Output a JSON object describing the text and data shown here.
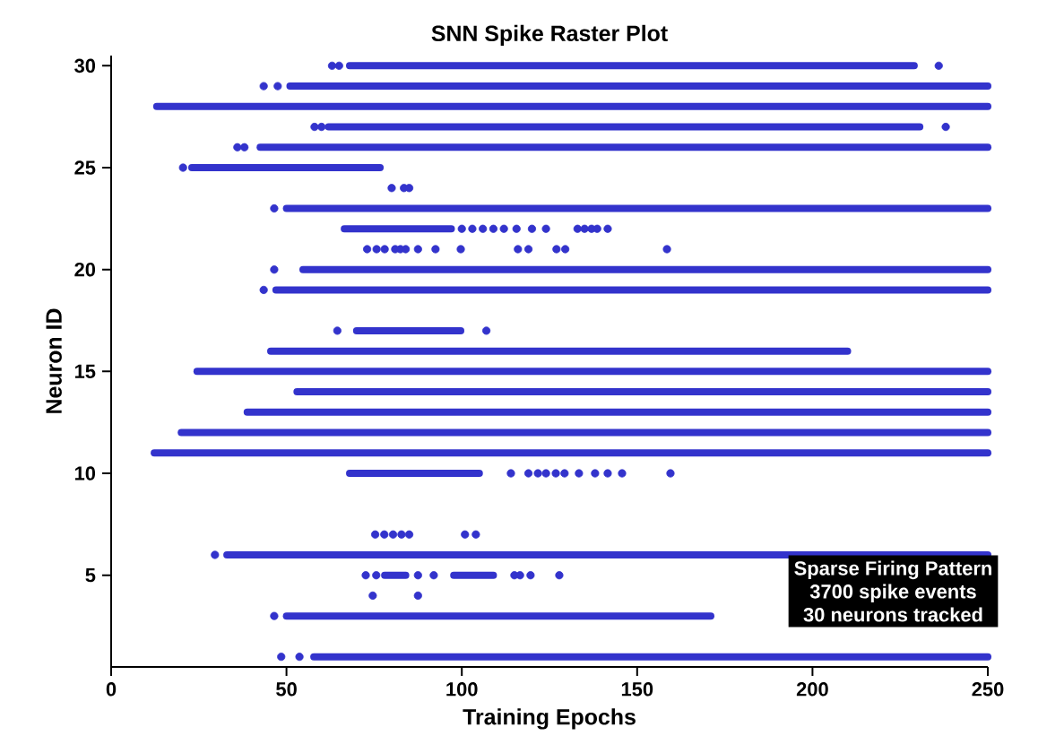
{
  "chart_data": {
    "type": "scatter",
    "title": "SNN Spike Raster Plot",
    "xlabel": "Training Epochs",
    "ylabel": "Neuron ID",
    "xlim": [
      0,
      250
    ],
    "ylim": [
      0.5,
      30.5
    ],
    "xticks": [
      0,
      50,
      100,
      150,
      200,
      250
    ],
    "yticks": [
      5,
      10,
      15,
      20,
      25,
      30
    ],
    "annotations": [
      "Sparse Firing Pattern",
      "3700 spike events",
      "30 neurons tracked"
    ],
    "series": [
      {
        "color": "#3333cc",
        "marker": "circle",
        "x": [
          63,
          65,
          236,
          43.5,
          47.5,
          58,
          60,
          238,
          36,
          38,
          20.5,
          80,
          83.5,
          85,
          46.5,
          100,
          103,
          106,
          109,
          112,
          115.6,
          120,
          124,
          133,
          135,
          137,
          138.6,
          141.6,
          73,
          75.7,
          78,
          81,
          82.5,
          84,
          87.5,
          92.5,
          99.7,
          116,
          119,
          127,
          129.5,
          158.5,
          46.5,
          43.5,
          64.5,
          107,
          114,
          119,
          121.7,
          124,
          126.8,
          129.3,
          133.4,
          138,
          141.6,
          145.7,
          159.5,
          75.3,
          77.9,
          80.4,
          82.8,
          85,
          100.9,
          104,
          29.6,
          72.6,
          75.6,
          87.5,
          92,
          115,
          116.6,
          119.6,
          127.8,
          74.6,
          87.5,
          46.5,
          48.5,
          53.7
        ],
        "values": [
          30,
          30,
          30,
          29,
          29,
          27,
          27,
          27,
          26,
          26,
          25,
          24,
          24,
          24,
          23,
          22,
          22,
          22,
          22,
          22,
          22,
          22,
          22,
          22,
          22,
          22,
          22,
          22,
          21,
          21,
          21,
          21,
          21,
          21,
          21,
          21,
          21,
          21,
          21,
          21,
          21,
          21,
          20,
          19,
          17,
          17,
          10,
          10,
          10,
          10,
          10,
          10,
          10,
          10,
          10,
          10,
          10,
          7,
          7,
          7,
          7,
          7,
          7,
          7,
          6,
          5,
          5,
          5,
          5,
          5,
          5,
          5,
          5,
          4,
          4,
          3,
          1,
          1
        ]
      },
      {
        "type": "line",
        "marker": "none",
        "color": "#3333cc",
        "x": [
          68,
          229
        ],
        "values": [
          30,
          30
        ]
      },
      {
        "type": "line",
        "marker": "none",
        "color": "#3333cc",
        "x": [
          51,
          250
        ],
        "values": [
          29,
          29
        ]
      },
      {
        "type": "line",
        "marker": "none",
        "color": "#3333cc",
        "x": [
          13,
          250
        ],
        "values": [
          28,
          28
        ]
      },
      {
        "type": "line",
        "marker": "none",
        "color": "#3333cc",
        "x": [
          62,
          230.6
        ],
        "values": [
          27,
          27
        ]
      },
      {
        "type": "line",
        "marker": "none",
        "color": "#3333cc",
        "x": [
          42.5,
          250
        ],
        "values": [
          26,
          26
        ]
      },
      {
        "type": "line",
        "marker": "none",
        "color": "#3333cc",
        "x": [
          23,
          76.7
        ],
        "values": [
          25,
          25
        ]
      },
      {
        "type": "line",
        "marker": "none",
        "color": "#3333cc",
        "x": [
          50,
          250
        ],
        "values": [
          23,
          23
        ]
      },
      {
        "type": "line",
        "marker": "none",
        "color": "#3333cc",
        "x": [
          66.5,
          97
        ],
        "values": [
          22,
          22
        ]
      },
      {
        "type": "line",
        "marker": "none",
        "color": "#3333cc",
        "x": [
          54.7,
          250
        ],
        "values": [
          20,
          20
        ]
      },
      {
        "type": "line",
        "marker": "none",
        "color": "#3333cc",
        "x": [
          47,
          250
        ],
        "values": [
          19,
          19
        ]
      },
      {
        "type": "line",
        "marker": "none",
        "color": "#3333cc",
        "x": [
          70,
          99.7
        ],
        "values": [
          17,
          17
        ]
      },
      {
        "type": "line",
        "marker": "none",
        "color": "#3333cc",
        "x": [
          45.5,
          210
        ],
        "values": [
          16,
          16
        ]
      },
      {
        "type": "line",
        "marker": "none",
        "color": "#3333cc",
        "x": [
          24.5,
          250
        ],
        "values": [
          15,
          15
        ]
      },
      {
        "type": "line",
        "marker": "none",
        "color": "#3333cc",
        "x": [
          53,
          250
        ],
        "values": [
          14,
          14
        ]
      },
      {
        "type": "line",
        "marker": "none",
        "color": "#3333cc",
        "x": [
          38.8,
          250
        ],
        "values": [
          13,
          13
        ]
      },
      {
        "type": "line",
        "marker": "none",
        "color": "#3333cc",
        "x": [
          20,
          250
        ],
        "values": [
          12,
          12
        ]
      },
      {
        "type": "line",
        "marker": "none",
        "color": "#3333cc",
        "x": [
          12.3,
          250
        ],
        "values": [
          11,
          11
        ]
      },
      {
        "type": "line",
        "marker": "none",
        "color": "#3333cc",
        "x": [
          68,
          105
        ],
        "values": [
          10,
          10
        ]
      },
      {
        "type": "line",
        "marker": "none",
        "color": "#3333cc",
        "x": [
          33,
          250
        ],
        "values": [
          6,
          6
        ]
      },
      {
        "type": "line",
        "marker": "none",
        "color": "#3333cc",
        "x": [
          78,
          84
        ],
        "values": [
          5,
          5
        ]
      },
      {
        "type": "line",
        "marker": "none",
        "color": "#3333cc",
        "x": [
          97.7,
          109
        ],
        "values": [
          5,
          5
        ]
      },
      {
        "type": "line",
        "marker": "none",
        "color": "#3333cc",
        "x": [
          50,
          171
        ],
        "values": [
          3,
          3
        ]
      },
      {
        "type": "line",
        "marker": "none",
        "color": "#3333cc",
        "x": [
          57.8,
          250
        ],
        "values": [
          1,
          1
        ]
      }
    ]
  }
}
